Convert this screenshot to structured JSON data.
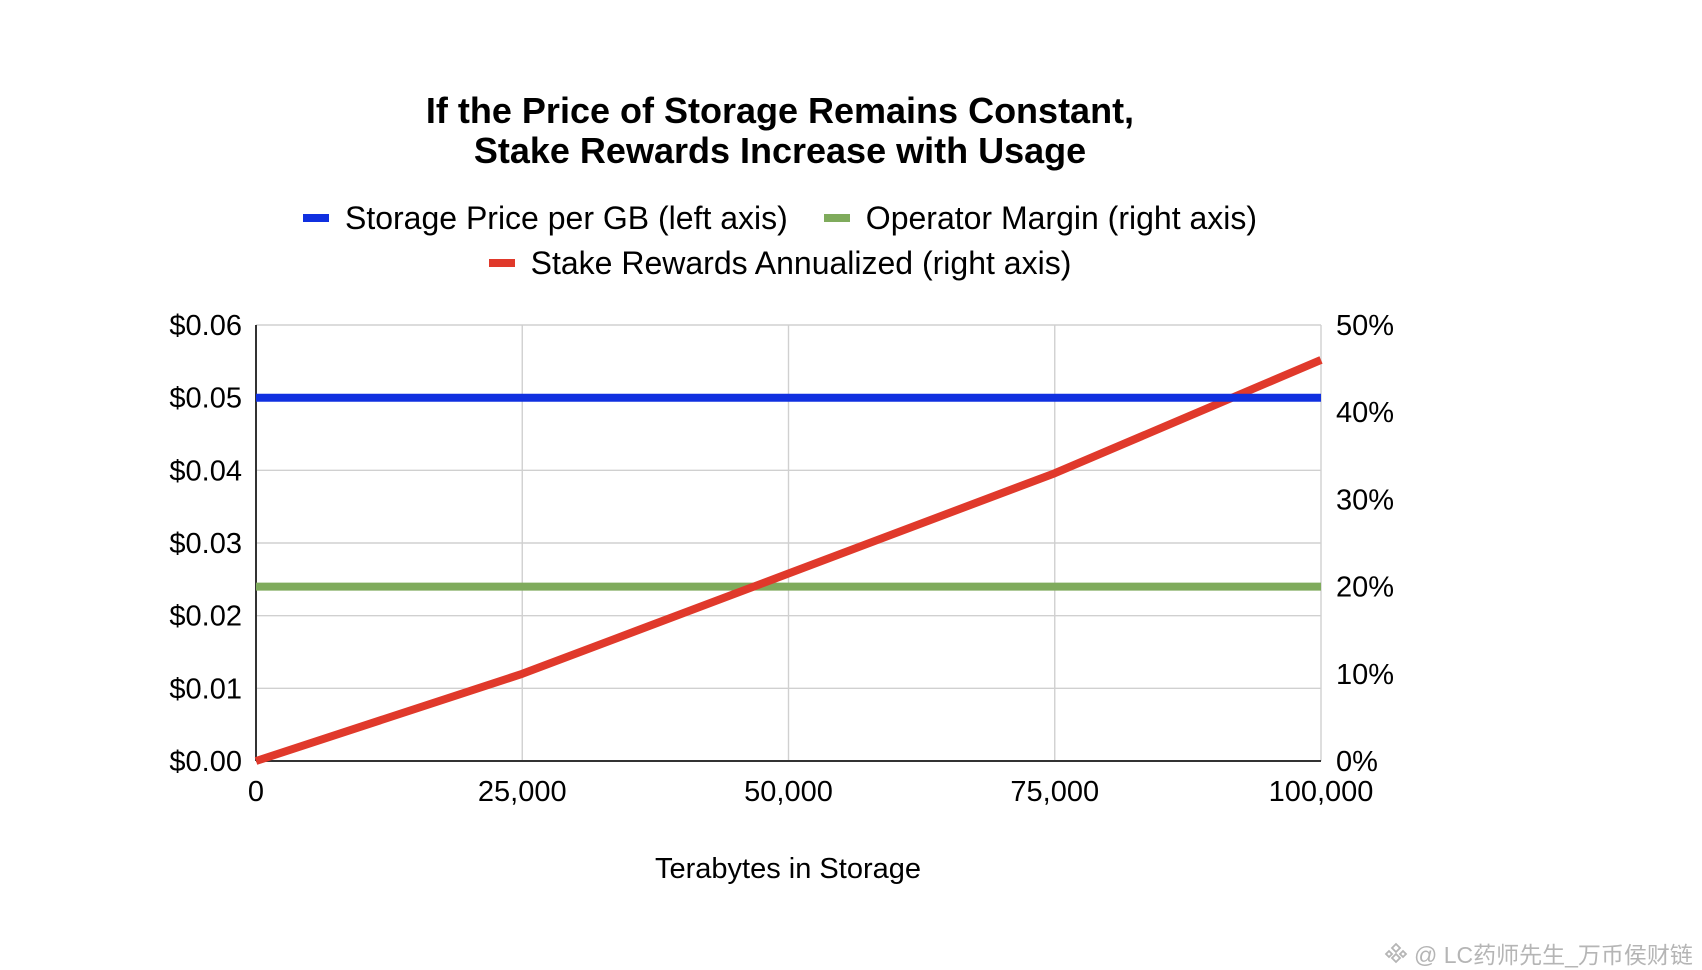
{
  "chart_data": {
    "type": "line",
    "title_lines": [
      "If the Price of Storage Remains Constant,",
      "Stake Rewards Increase with Usage"
    ],
    "xlabel": "Terabytes in Storage",
    "xlim": [
      0,
      100000
    ],
    "x_ticks": [
      0,
      25000,
      50000,
      75000,
      100000
    ],
    "x_tick_labels": [
      "0",
      "25,000",
      "50,000",
      "75,000",
      "100,000"
    ],
    "left_axis": {
      "ylim": [
        0,
        0.06
      ],
      "ticks": [
        0,
        0.01,
        0.02,
        0.03,
        0.04,
        0.05,
        0.06
      ],
      "tick_labels": [
        "$0.00",
        "$0.01",
        "$0.02",
        "$0.03",
        "$0.04",
        "$0.05",
        "$0.06"
      ]
    },
    "right_axis": {
      "ylim": [
        0,
        50
      ],
      "ticks": [
        0,
        10,
        20,
        30,
        40,
        50
      ],
      "tick_labels": [
        "0%",
        "10%",
        "20%",
        "30%",
        "40%",
        "50%"
      ]
    },
    "grid": true,
    "legend_position": "top",
    "series": [
      {
        "name": "Storage Price per GB (left axis)",
        "axis": "left",
        "color": "#1030e0",
        "x": [
          0,
          100000
        ],
        "values": [
          0.05,
          0.05
        ]
      },
      {
        "name": "Operator Margin (right axis)",
        "axis": "right",
        "color": "#7fab5c",
        "x": [
          0,
          100000
        ],
        "values": [
          20,
          20
        ]
      },
      {
        "name": "Stake Rewards Annualized (right axis)",
        "axis": "right",
        "color": "#e0392b",
        "x": [
          0,
          25000,
          50000,
          75000,
          100000
        ],
        "values": [
          0,
          10,
          21.5,
          33,
          46
        ]
      }
    ]
  },
  "watermark": {
    "icon": "binance-square-logo-icon",
    "text": "@ LC药师先生_万币侯财链"
  }
}
